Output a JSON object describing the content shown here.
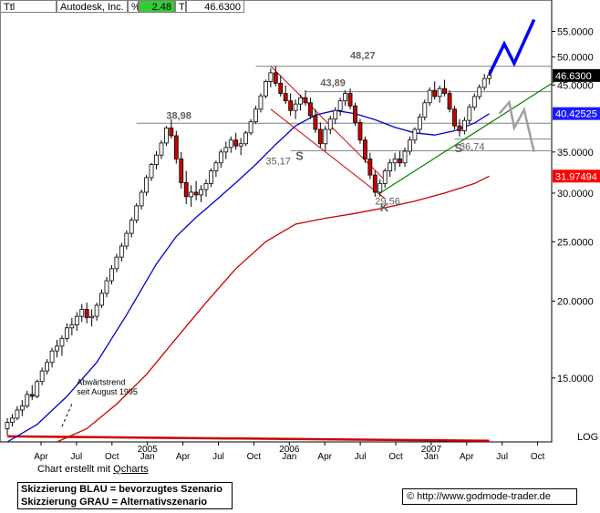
{
  "header": {
    "ticker_code": "Ttl",
    "company": "Autodesk, Inc.",
    "pct_label": "%",
    "pct_value": "2.48",
    "t_label": "T",
    "last_price": "46.6300"
  },
  "footer": {
    "credit_prefix": "Chart erstellt mit ",
    "credit_tool": "Qcharts",
    "legend_blue": "Skizzierung BLAU = bevorzugtes Szenario",
    "legend_grey": "Skizzierung GRAU = Alternativszenario",
    "source": "© http://www.godmode-trader.de"
  },
  "colors": {
    "candle": "#000000",
    "candle_down": "#cc0000",
    "ma_blue": "#0000cc",
    "ma_red": "#cc0000",
    "trend_green": "#008000",
    "scenario_blue": "#0000ff",
    "scenario_grey": "#a0a0a0",
    "price_tag_black": "#000000",
    "price_tag_blue": "#1a1aff",
    "price_tag_red": "#ff0000"
  },
  "chart_data": {
    "type": "candlestick",
    "yscale": "log",
    "scale_label": "LOG",
    "ylim": [
      11.8,
      59
    ],
    "y_ticks": [
      {
        "v": 55,
        "label": "55.0000"
      },
      {
        "v": 50,
        "label": "50.0000"
      },
      {
        "v": 45,
        "label": "45.0000"
      },
      {
        "v": 35,
        "label": "35.0000"
      },
      {
        "v": 30,
        "label": "30.0000"
      },
      {
        "v": 25,
        "label": "25.0000"
      },
      {
        "v": 20,
        "label": "20.0000"
      },
      {
        "v": 15,
        "label": "15.0000"
      }
    ],
    "x_ticks": [
      "Apr",
      "Jul",
      "Oct",
      "Jan",
      "Apr",
      "Jul",
      "Oct",
      "Jan",
      "Apr",
      "Jul",
      "Oct",
      "Jan",
      "Apr",
      "Jul",
      "Oct"
    ],
    "x_years": [
      {
        "label": "2005",
        "tick": 3
      },
      {
        "label": "2006",
        "tick": 7
      },
      {
        "label": "2007",
        "tick": 11
      }
    ],
    "price_tags": [
      {
        "value": 46.63,
        "label": "46.6300",
        "color": "price_tag_black"
      },
      {
        "value": 40.42525,
        "label": "40.42525",
        "color": "price_tag_blue"
      },
      {
        "value": 31.97494,
        "label": "31.97494",
        "color": "price_tag_red"
      }
    ],
    "horizontal_levels": [
      {
        "value": 48.27,
        "label": "48,27"
      },
      {
        "value": 43.89,
        "label": "43,89"
      },
      {
        "value": 38.98,
        "label": "38,98"
      },
      {
        "value": 35.17,
        "label": "35,17"
      },
      {
        "value": 36.74,
        "label": "36,74"
      },
      {
        "value": 29.56,
        "label": "29,56"
      }
    ],
    "annotations": [
      {
        "text": "S",
        "role": "left-shoulder"
      },
      {
        "text": "K",
        "role": "head"
      },
      {
        "text": "S",
        "role": "right-shoulder"
      },
      {
        "text": "Abwärtstrend",
        "role": "trend-note-1"
      },
      {
        "text": "seit August 1995",
        "role": "trend-note-2"
      }
    ],
    "candles": [
      [
        12.4,
        12.9,
        12.1,
        12.7
      ],
      [
        12.7,
        13.1,
        12.5,
        12.9
      ],
      [
        12.9,
        13.5,
        12.8,
        13.3
      ],
      [
        13.3,
        13.8,
        13.0,
        13.5
      ],
      [
        13.5,
        14.3,
        13.4,
        14.1
      ],
      [
        14.1,
        14.6,
        13.8,
        14.0
      ],
      [
        14.0,
        14.9,
        13.9,
        14.8
      ],
      [
        14.8,
        15.6,
        14.6,
        15.4
      ],
      [
        15.4,
        16.1,
        15.2,
        15.9
      ],
      [
        15.9,
        16.8,
        15.6,
        16.6
      ],
      [
        16.6,
        17.3,
        16.2,
        16.9
      ],
      [
        16.9,
        17.6,
        16.3,
        17.4
      ],
      [
        17.4,
        18.4,
        17.2,
        18.1
      ],
      [
        18.1,
        18.8,
        17.6,
        18.3
      ],
      [
        18.3,
        19.2,
        17.9,
        18.9
      ],
      [
        18.9,
        19.8,
        18.5,
        19.4
      ],
      [
        19.4,
        19.9,
        18.4,
        18.8
      ],
      [
        18.8,
        19.4,
        18.2,
        18.9
      ],
      [
        18.9,
        19.9,
        18.6,
        19.7
      ],
      [
        19.7,
        20.9,
        19.5,
        20.6
      ],
      [
        20.6,
        21.9,
        20.3,
        21.6
      ],
      [
        21.6,
        22.9,
        21.3,
        22.6
      ],
      [
        22.6,
        23.9,
        22.3,
        23.6
      ],
      [
        23.6,
        24.9,
        23.2,
        24.6
      ],
      [
        24.6,
        26.1,
        24.3,
        25.8
      ],
      [
        25.8,
        27.4,
        25.4,
        27.1
      ],
      [
        27.1,
        28.9,
        26.8,
        28.6
      ],
      [
        28.6,
        30.4,
        28.2,
        30.1
      ],
      [
        30.1,
        32.1,
        29.7,
        31.8
      ],
      [
        31.8,
        33.6,
        31.4,
        33.4
      ],
      [
        33.4,
        35.1,
        32.8,
        34.6
      ],
      [
        34.6,
        36.6,
        34.1,
        36.2
      ],
      [
        36.2,
        38.6,
        35.8,
        38.3
      ],
      [
        38.3,
        39.6,
        36.8,
        37.2
      ],
      [
        37.2,
        37.9,
        33.5,
        34.1
      ],
      [
        34.1,
        35.0,
        30.5,
        31.2
      ],
      [
        31.2,
        32.6,
        28.8,
        29.6
      ],
      [
        29.6,
        30.9,
        28.5,
        30.1
      ],
      [
        30.1,
        31.4,
        29.2,
        29.8
      ],
      [
        29.8,
        30.9,
        29.0,
        30.4
      ],
      [
        30.4,
        31.6,
        29.6,
        31.1
      ],
      [
        31.1,
        32.9,
        30.7,
        32.6
      ],
      [
        32.6,
        33.9,
        31.9,
        33.6
      ],
      [
        33.6,
        35.4,
        33.0,
        35.0
      ],
      [
        35.0,
        36.4,
        34.1,
        35.6
      ],
      [
        35.6,
        37.1,
        34.9,
        36.6
      ],
      [
        36.6,
        37.6,
        35.3,
        35.8
      ],
      [
        35.8,
        36.9,
        34.6,
        36.1
      ],
      [
        36.1,
        37.9,
        35.8,
        37.6
      ],
      [
        37.6,
        39.6,
        37.3,
        39.2
      ],
      [
        39.2,
        41.6,
        38.9,
        41.1
      ],
      [
        41.1,
        43.6,
        40.6,
        43.2
      ],
      [
        43.2,
        45.9,
        42.8,
        45.6
      ],
      [
        45.6,
        47.9,
        44.6,
        47.1
      ],
      [
        47.1,
        48.3,
        44.8,
        45.3
      ],
      [
        45.3,
        46.6,
        43.1,
        43.6
      ],
      [
        43.6,
        44.9,
        41.9,
        42.4
      ],
      [
        42.4,
        43.6,
        40.1,
        40.9
      ],
      [
        40.9,
        42.6,
        39.6,
        41.9
      ],
      [
        41.9,
        43.4,
        40.9,
        42.9
      ],
      [
        42.9,
        44.1,
        41.6,
        42.1
      ],
      [
        42.1,
        42.9,
        39.6,
        40.1
      ],
      [
        40.1,
        41.1,
        37.6,
        38.1
      ],
      [
        38.1,
        39.1,
        35.6,
        36.1
      ],
      [
        36.1,
        38.6,
        35.2,
        38.1
      ],
      [
        38.1,
        40.1,
        37.4,
        39.6
      ],
      [
        39.6,
        41.4,
        38.9,
        40.9
      ],
      [
        40.9,
        42.9,
        40.1,
        42.4
      ],
      [
        42.4,
        44.1,
        41.6,
        43.6
      ],
      [
        43.6,
        44.4,
        41.1,
        41.6
      ],
      [
        41.6,
        42.1,
        38.6,
        39.1
      ],
      [
        39.1,
        39.6,
        36.1,
        36.6
      ],
      [
        36.6,
        37.1,
        33.6,
        34.1
      ],
      [
        34.1,
        34.9,
        31.6,
        32.1
      ],
      [
        32.1,
        32.6,
        29.6,
        30.1
      ],
      [
        30.1,
        31.6,
        29.6,
        31.1
      ],
      [
        31.1,
        32.9,
        30.6,
        32.6
      ],
      [
        32.6,
        34.1,
        31.9,
        33.6
      ],
      [
        33.6,
        34.9,
        32.6,
        34.1
      ],
      [
        34.1,
        35.1,
        33.1,
        33.6
      ],
      [
        33.6,
        35.6,
        33.1,
        35.1
      ],
      [
        35.1,
        37.1,
        34.6,
        36.6
      ],
      [
        36.6,
        38.4,
        36.1,
        38.1
      ],
      [
        38.1,
        40.4,
        37.6,
        39.9
      ],
      [
        39.9,
        42.6,
        39.4,
        42.1
      ],
      [
        42.1,
        44.6,
        41.6,
        44.1
      ],
      [
        44.1,
        45.6,
        42.6,
        43.1
      ],
      [
        43.1,
        44.9,
        42.1,
        44.4
      ],
      [
        44.4,
        45.9,
        43.1,
        43.6
      ],
      [
        43.6,
        44.1,
        40.6,
        41.1
      ],
      [
        41.1,
        41.6,
        38.1,
        38.6
      ],
      [
        38.6,
        39.6,
        37.1,
        37.9
      ],
      [
        37.9,
        39.9,
        37.4,
        39.4
      ],
      [
        39.4,
        41.9,
        38.9,
        41.4
      ],
      [
        41.4,
        43.6,
        40.9,
        43.1
      ],
      [
        43.1,
        45.1,
        42.6,
        44.6
      ],
      [
        44.6,
        46.9,
        44.1,
        46.1
      ],
      [
        46.1,
        47.6,
        45.1,
        46.63
      ]
    ],
    "ma_blue": [
      [
        0,
        11.8
      ],
      [
        6,
        12.6
      ],
      [
        12,
        14.0
      ],
      [
        18,
        15.9
      ],
      [
        24,
        19.0
      ],
      [
        30,
        23.0
      ],
      [
        34,
        25.5
      ],
      [
        38,
        27.4
      ],
      [
        42,
        29.2
      ],
      [
        46,
        31.2
      ],
      [
        50,
        33.4
      ],
      [
        54,
        36.0
      ],
      [
        58,
        38.6
      ],
      [
        62,
        40.2
      ],
      [
        66,
        40.9
      ],
      [
        70,
        40.4
      ],
      [
        74,
        39.5
      ],
      [
        78,
        38.4
      ],
      [
        82,
        37.6
      ],
      [
        86,
        37.3
      ],
      [
        90,
        37.9
      ],
      [
        94,
        39.0
      ],
      [
        97,
        40.4
      ]
    ],
    "ma_red": [
      [
        10,
        11.8
      ],
      [
        16,
        12.4
      ],
      [
        22,
        13.6
      ],
      [
        28,
        15.2
      ],
      [
        34,
        17.4
      ],
      [
        40,
        19.9
      ],
      [
        46,
        22.6
      ],
      [
        52,
        25.0
      ],
      [
        58,
        26.7
      ],
      [
        64,
        27.3
      ],
      [
        70,
        27.8
      ],
      [
        76,
        28.4
      ],
      [
        82,
        29.1
      ],
      [
        88,
        30.0
      ],
      [
        94,
        31.1
      ],
      [
        97,
        31.97
      ]
    ],
    "long_trend_red": [
      [
        0,
        12.05
      ],
      [
        97,
        11.85
      ]
    ],
    "trend_green": [
      [
        75,
        30.0
      ],
      [
        110,
        45.5
      ]
    ],
    "neckline_red_top": [
      [
        53,
        48.3
      ],
      [
        76,
        31.5
      ]
    ],
    "neckline_red_bottom": [
      [
        53,
        41.1
      ],
      [
        76,
        29.4
      ]
    ],
    "scenario_blue": [
      [
        97,
        46.8
      ],
      [
        100,
        52.5
      ],
      [
        102,
        48.8
      ],
      [
        106,
        57.5
      ]
    ],
    "scenario_grey": [
      [
        99,
        40.4
      ],
      [
        101,
        42.2
      ],
      [
        102,
        38.3
      ],
      [
        104,
        41.0
      ],
      [
        106,
        35.0
      ]
    ]
  }
}
